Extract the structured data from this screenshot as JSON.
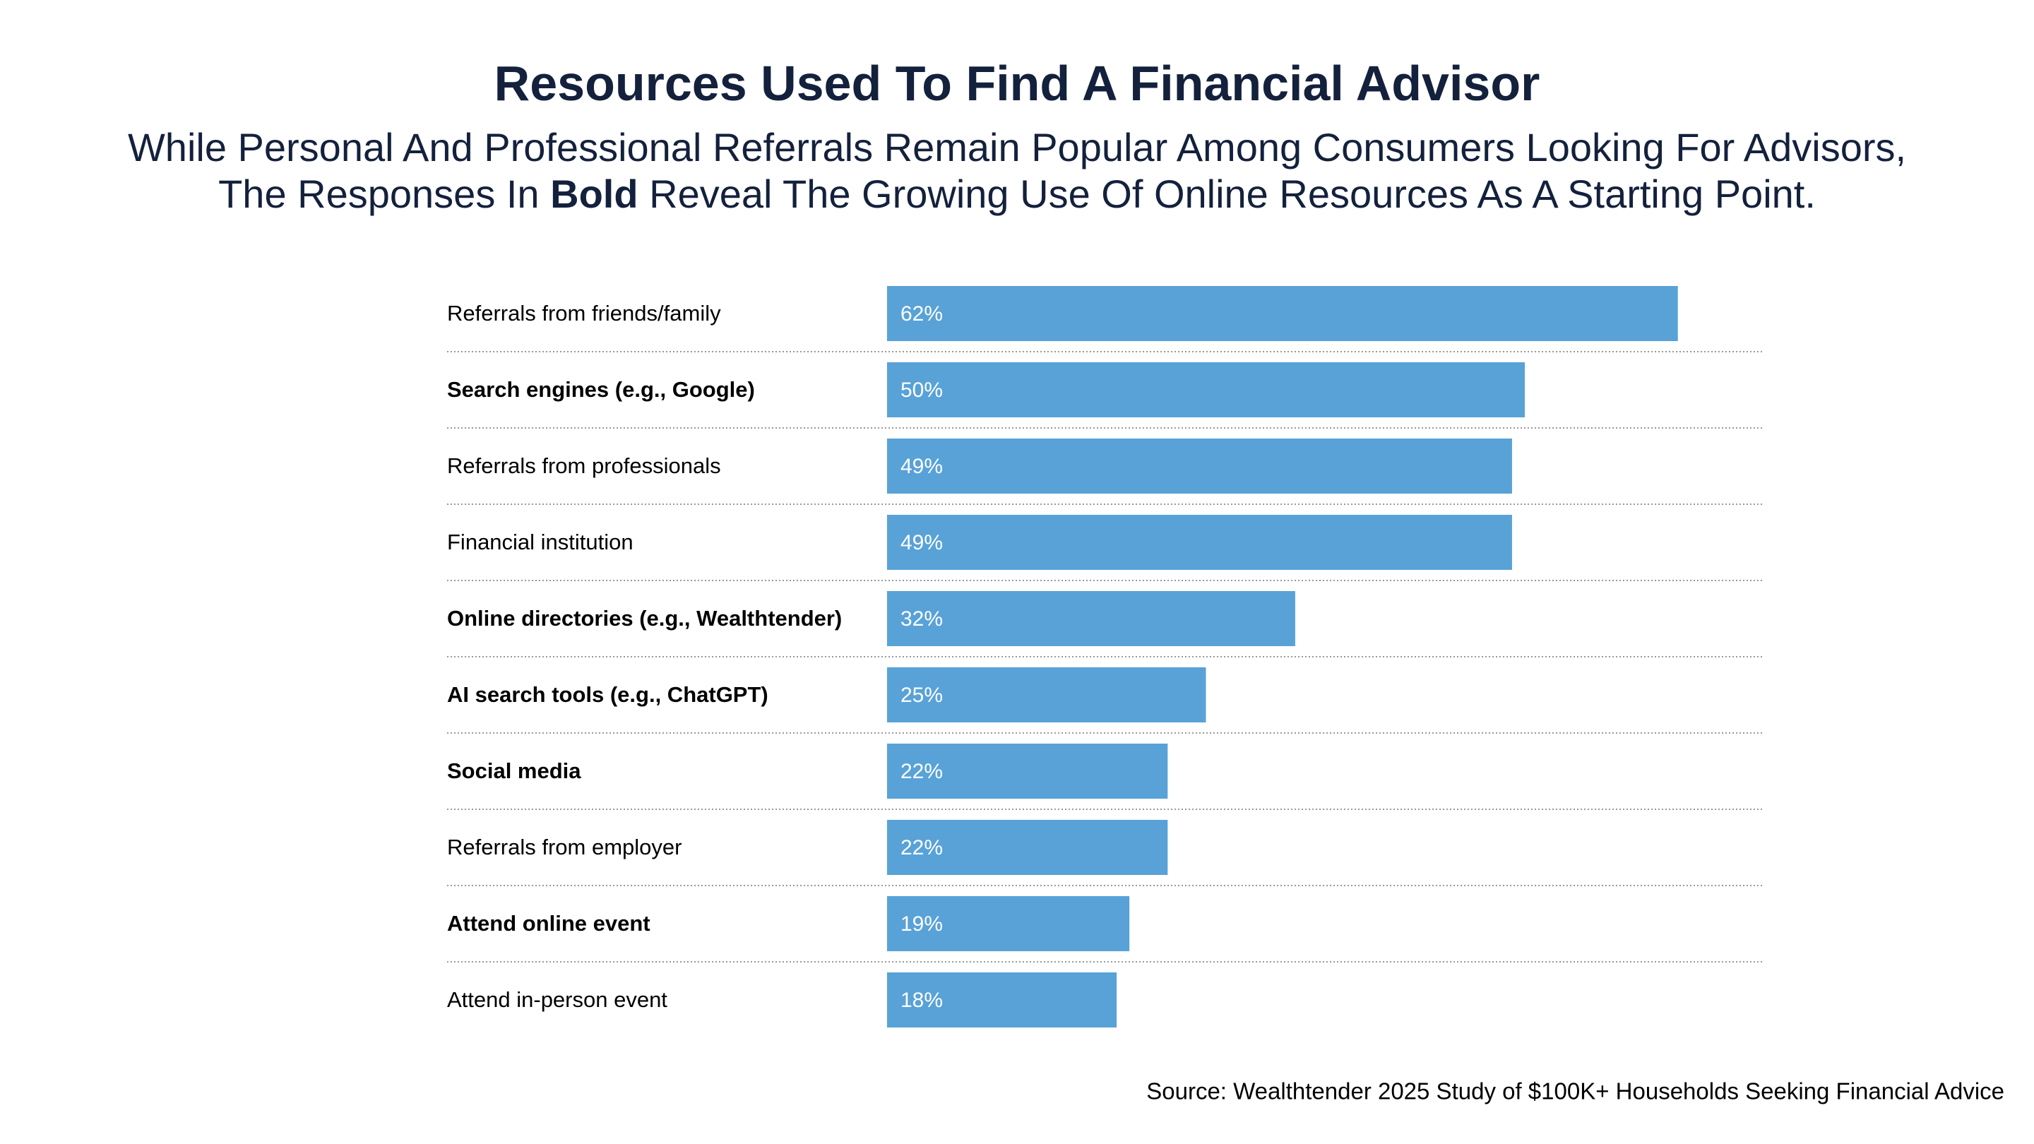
{
  "chart_data": {
    "type": "bar",
    "orientation": "horizontal",
    "title": "Resources Used To Find A Financial Advisor",
    "subtitle": [
      [
        "While Personal And Professional Referrals Remain Popular Among Consumers Looking For Advisors,"
      ],
      [
        "The Responses In",
        "Bold",
        "Reveal The Growing Use Of Online Resources As A Starting Point."
      ]
    ],
    "categories": [
      "Referrals from friends/family",
      "Search engines (e.g., Google)",
      "Referrals from professionals",
      "Financial institution",
      "Online directories (e.g., Wealthtender)",
      "AI search tools (e.g., ChatGPT)",
      "Social media",
      "Referrals from employer",
      "Attend online event",
      "Attend in-person event"
    ],
    "bold_categories": [
      false,
      true,
      false,
      false,
      true,
      true,
      true,
      false,
      true,
      false
    ],
    "values": [
      62,
      50,
      49,
      49,
      32,
      25,
      22,
      22,
      19,
      18
    ],
    "value_labels": [
      "62%",
      "50%",
      "49%",
      "49%",
      "32%",
      "25%",
      "22%",
      "22%",
      "19%",
      "18%"
    ],
    "color": "#58a2d8",
    "source": "Source: Wealthtender 2025 Study of $100K+ Households Seeking Financial Advice"
  }
}
